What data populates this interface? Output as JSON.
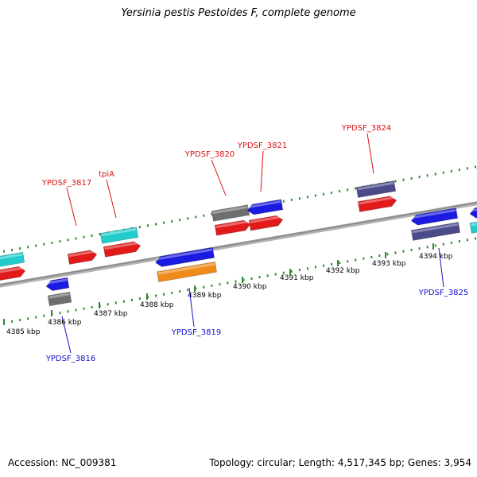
{
  "title": "Yersinia pestis Pestoides F, complete genome",
  "footer": {
    "accession": "Accession: NC_009381",
    "topology": "Topology: circular; Length: 4,517,345 bp; Genes: 3,954"
  },
  "colors": {
    "background": "#ffffff",
    "backbone": "#8c8c8c",
    "ticks": "#2e8b2e",
    "label_forward": "#dd1111",
    "label_reverse": "#1111cc",
    "gene_red": "#e21a1a",
    "gene_cyan": "#22cccc",
    "gene_gray": "#6e6e6e",
    "gene_blue": "#1a1ae0",
    "gene_orange": "#f08a1a",
    "gene_purple": "#4a4a8a"
  },
  "scale": {
    "unit": "kbp",
    "ticks": [
      4385,
      4386,
      4387,
      4388,
      4389,
      4390,
      4391,
      4392,
      4393,
      4394
    ]
  },
  "gene_labels": [
    {
      "id": "YPDSF_3817",
      "text": "YPDSF_3817",
      "strand": "forward"
    },
    {
      "id": "tpiA",
      "text": "tpiA",
      "strand": "forward"
    },
    {
      "id": "YPDSF_3820",
      "text": "YPDSF_3820",
      "strand": "forward"
    },
    {
      "id": "YPDSF_3821",
      "text": "YPDSF_3821",
      "strand": "forward"
    },
    {
      "id": "YPDSF_3824",
      "text": "YPDSF_3824",
      "strand": "forward"
    },
    {
      "id": "YPDSF_3816",
      "text": "YPDSF_3816",
      "strand": "reverse"
    },
    {
      "id": "YPDSF_3819",
      "text": "YPDSF_3819",
      "strand": "reverse"
    },
    {
      "id": "YPDSF_3825",
      "text": "YPDSF_3825",
      "strand": "reverse"
    }
  ]
}
